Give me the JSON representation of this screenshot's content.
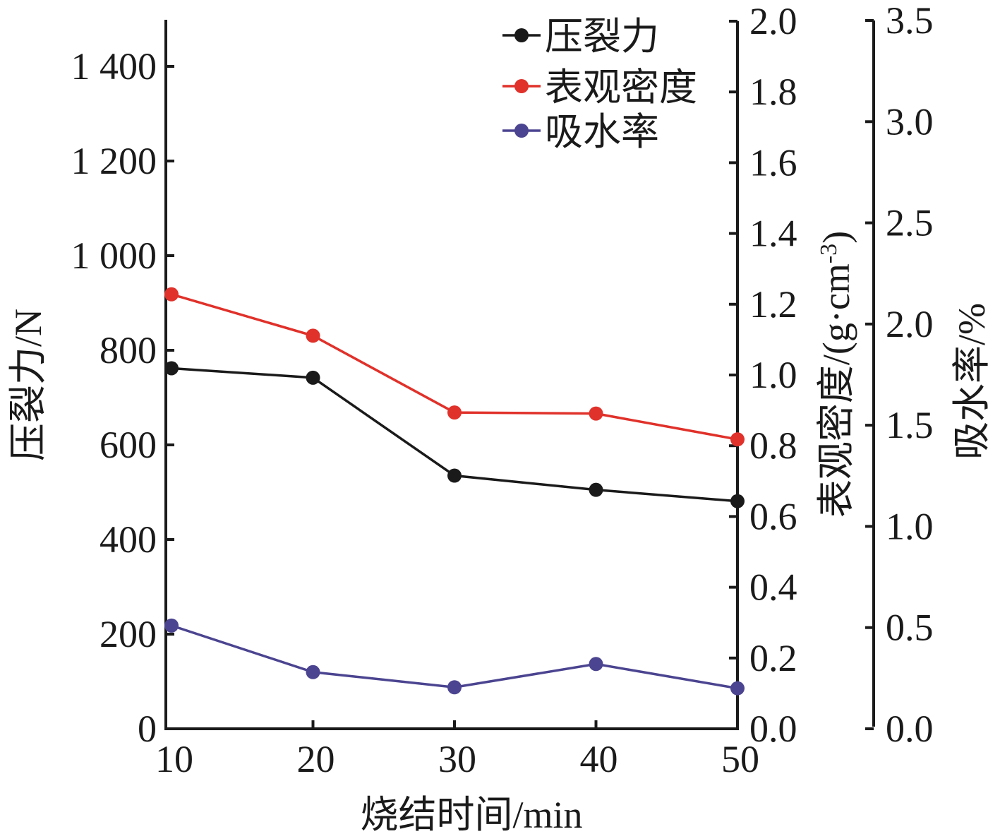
{
  "chart_data": {
    "type": "line",
    "x": [
      10,
      20,
      30,
      40,
      50
    ],
    "x_tick_labels": [
      "10",
      "20",
      "30",
      "40",
      "50"
    ],
    "xlabel": "烧结时间/min",
    "xlim": [
      10,
      50
    ],
    "axes": {
      "left": {
        "label": "压裂力/N",
        "lim": [
          0,
          1500
        ],
        "ticks": [
          0,
          200,
          400,
          600,
          800,
          1000,
          1200,
          1400
        ],
        "tick_labels": [
          "0",
          "200",
          "400",
          "600",
          "800",
          "1 000",
          "1 200",
          "1 400"
        ]
      },
      "right1": {
        "label_main": "表观密度/(g·cm",
        "label_sup": "-3",
        "label_end": ")",
        "lim": [
          0,
          2.0
        ],
        "ticks": [
          0.0,
          0.2,
          0.4,
          0.6,
          0.8,
          1.0,
          1.2,
          1.4,
          1.6,
          1.8,
          2.0
        ],
        "tick_labels": [
          "0.0",
          "0.2",
          "0.4",
          "0.6",
          "0.8",
          "1.0",
          "1.2",
          "1.4",
          "1.6",
          "1.8",
          "2.0"
        ]
      },
      "right2": {
        "label": "吸水率/%",
        "lim": [
          0,
          3.5
        ],
        "ticks": [
          0.0,
          0.5,
          1.0,
          1.5,
          2.0,
          2.5,
          3.0,
          3.5
        ],
        "tick_labels": [
          "0.0",
          "0.5",
          "1.0",
          "1.5",
          "2.0",
          "2.5",
          "3.0",
          "3.5"
        ]
      }
    },
    "series": [
      {
        "name": "压裂力",
        "axis": "left",
        "color": "#1a1a1a",
        "values": [
          762,
          742,
          535,
          505,
          481
        ]
      },
      {
        "name": "表观密度",
        "axis": "right1",
        "color": "#e0312a",
        "values": [
          1.228,
          1.111,
          0.894,
          0.891,
          0.818
        ]
      },
      {
        "name": "吸水率",
        "axis": "right2",
        "color": "#4b4490",
        "values": [
          0.51,
          0.28,
          0.205,
          0.32,
          0.2
        ]
      }
    ],
    "legend_position": "top-right",
    "grid": false
  }
}
